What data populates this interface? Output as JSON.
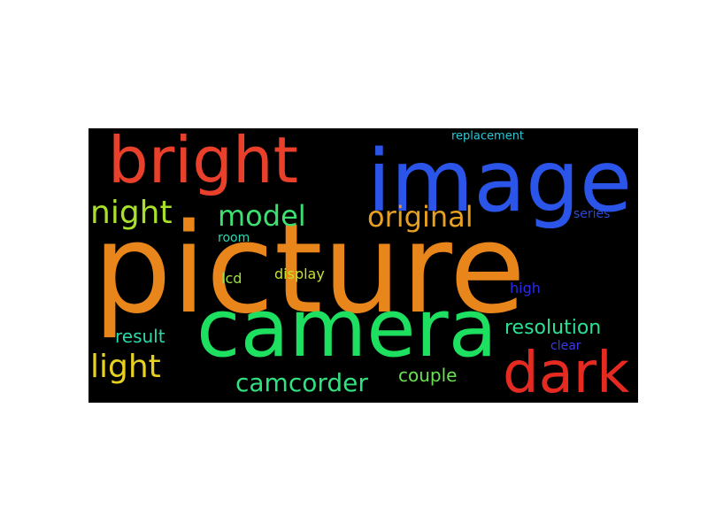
{
  "words": [
    {
      "text": "picture",
      "color": "#e8861c"
    },
    {
      "text": "image",
      "color": "#2a55e8"
    },
    {
      "text": "bright",
      "color": "#e8402a"
    },
    {
      "text": "camera",
      "color": "#1ee060"
    },
    {
      "text": "dark",
      "color": "#e52a22"
    },
    {
      "text": "night",
      "color": "#a8e02a"
    },
    {
      "text": "model",
      "color": "#3ce070"
    },
    {
      "text": "original",
      "color": "#e8a020"
    },
    {
      "text": "light",
      "color": "#e8d020"
    },
    {
      "text": "camcorder",
      "color": "#32e080"
    },
    {
      "text": "resolution",
      "color": "#2ae092"
    },
    {
      "text": "result",
      "color": "#2ad8a8"
    },
    {
      "text": "couple",
      "color": "#6ae052"
    },
    {
      "text": "display",
      "color": "#c8e02a"
    },
    {
      "text": "lcd",
      "color": "#9ae040"
    },
    {
      "text": "room",
      "color": "#2ad8b0"
    },
    {
      "text": "series",
      "color": "#2a48d8"
    },
    {
      "text": "high",
      "color": "#2a2ae8"
    },
    {
      "text": "clear",
      "color": "#3a3ae8"
    },
    {
      "text": "replacement",
      "color": "#2ac8d8"
    }
  ]
}
